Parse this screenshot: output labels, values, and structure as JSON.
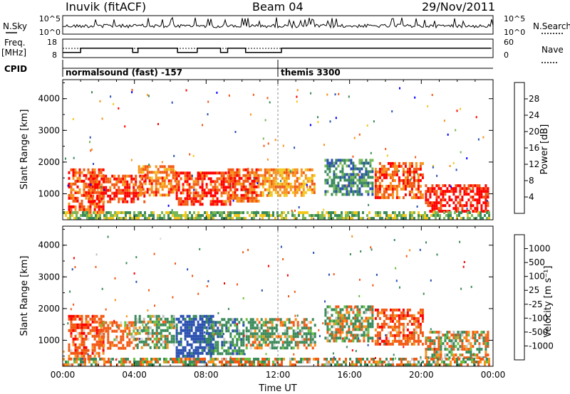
{
  "header": {
    "title": "Inuvik (fitACF)",
    "beam": "Beam 04",
    "date": "29/Nov/2011"
  },
  "noise_panel": {
    "left_label": "N.Sky",
    "right_label": "N.Search",
    "left_ticks": [
      "10^5",
      "10^0"
    ],
    "right_ticks": [
      "10^5",
      "10^0"
    ]
  },
  "freq_panel": {
    "left_label": "Freq.",
    "left_unit": "[MHz]",
    "right_label": "Nave",
    "left_ticks": [
      "18",
      "8"
    ],
    "right_ticks": [
      "60",
      "0"
    ]
  },
  "cpid": {
    "label": "CPID",
    "modes": [
      {
        "name": "normalsound (fast) -157",
        "start": 0,
        "end": 12
      },
      {
        "name": "themis 3300",
        "start": 12,
        "end": 24
      }
    ]
  },
  "colors": {
    "power": [
      "#0000ff",
      "#2a4fb0",
      "#3a8a5a",
      "#78b858",
      "#f2c81e",
      "#f7941d",
      "#f25a14",
      "#ff0000"
    ],
    "velocity": [
      "#ff0000",
      "#f25a14",
      "#f7941d",
      "#d9d9d9",
      "#c0c0c0",
      "#6cc040",
      "#3a8a5a",
      "#2a4fb0",
      "#0000ff"
    ]
  },
  "chart_data": [
    {
      "type": "heatmap",
      "name": "Power",
      "ylabel": "Slant Range [km]",
      "xlim": [
        0,
        24
      ],
      "ylim": [
        180,
        4600
      ],
      "yticks": [
        1000,
        2000,
        3000,
        4000
      ],
      "colorbar": {
        "label": "Power [dB]",
        "ticks": [
          "4",
          "8",
          "12",
          "16",
          "20",
          "24",
          "28"
        ],
        "range": [
          0,
          32
        ]
      },
      "regions": [
        {
          "x": [
            0.3,
            2.3
          ],
          "y": [
            400,
            1800
          ],
          "level": 26
        },
        {
          "x": [
            1.4,
            4.6
          ],
          "y": [
            700,
            1600
          ],
          "level": 28
        },
        {
          "x": [
            4.2,
            6.3
          ],
          "y": [
            900,
            1900
          ],
          "level": 24
        },
        {
          "x": [
            6.3,
            9.4
          ],
          "y": [
            600,
            1700
          ],
          "level": 28
        },
        {
          "x": [
            9.2,
            11.0
          ],
          "y": [
            700,
            1800
          ],
          "level": 26
        },
        {
          "x": [
            11.0,
            14.1
          ],
          "y": [
            900,
            1800
          ],
          "level": 22
        },
        {
          "x": [
            14.6,
            17.4
          ],
          "y": [
            900,
            2100
          ],
          "level": 10
        },
        {
          "x": [
            17.4,
            20.2
          ],
          "y": [
            800,
            2000
          ],
          "level": 26
        },
        {
          "x": [
            20.2,
            23.8
          ],
          "y": [
            400,
            1300
          ],
          "level": 30
        },
        {
          "x": [
            0.0,
            23.8
          ],
          "y": [
            200,
            450
          ],
          "level": 14
        }
      ]
    },
    {
      "type": "heatmap",
      "name": "Velocity",
      "ylabel": "Slant Range [km]",
      "xlabel": "Time UT",
      "xlim": [
        0,
        24
      ],
      "ylim": [
        180,
        4600
      ],
      "yticks": [
        1000,
        2000,
        3000,
        4000
      ],
      "xticks": [
        "00:00",
        "04:00",
        "08:00",
        "12:00",
        "16:00",
        "20:00",
        "00:00"
      ],
      "colorbar": {
        "label": "Velocity [m s⁻¹]",
        "ticks": [
          "1000",
          "500",
          "100",
          "25",
          "-25",
          "-100",
          "-500",
          "-1000"
        ],
        "range": [
          -1000,
          1000
        ]
      },
      "regions": [
        {
          "x": [
            0.3,
            2.3
          ],
          "y": [
            400,
            1800
          ],
          "level": -300
        },
        {
          "x": [
            2.0,
            4.2
          ],
          "y": [
            700,
            1600
          ],
          "level": -200
        },
        {
          "x": [
            4.0,
            6.3
          ],
          "y": [
            700,
            1800
          ],
          "level": 150
        },
        {
          "x": [
            6.3,
            8.4
          ],
          "y": [
            300,
            1800
          ],
          "level": 700
        },
        {
          "x": [
            8.0,
            10.2
          ],
          "y": [
            500,
            1700
          ],
          "level": 300
        },
        {
          "x": [
            10.2,
            14.1
          ],
          "y": [
            700,
            1700
          ],
          "level": 120
        },
        {
          "x": [
            14.6,
            17.4
          ],
          "y": [
            900,
            2100
          ],
          "level": 60
        },
        {
          "x": [
            17.4,
            20.2
          ],
          "y": [
            800,
            2000
          ],
          "level": -300
        },
        {
          "x": [
            20.2,
            23.8
          ],
          "y": [
            400,
            1300
          ],
          "level": 20
        },
        {
          "x": [
            0.0,
            23.8
          ],
          "y": [
            200,
            450
          ],
          "level": 10
        }
      ]
    }
  ]
}
